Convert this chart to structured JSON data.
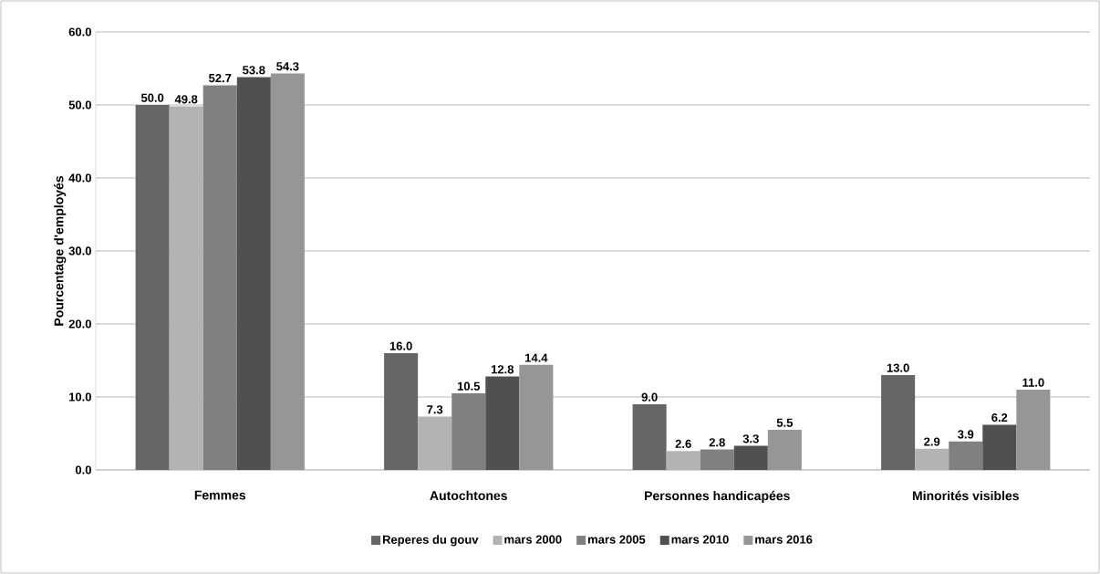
{
  "chart_data": {
    "type": "bar",
    "ylabel": "Pourcentage  d'employés",
    "categories": [
      "Femmes",
      "Autochtones",
      "Personnes handicapées",
      "Minorités visibles"
    ],
    "series": [
      {
        "name": "Reperes du gouv",
        "color": "#666666",
        "values": [
          50.0,
          16.0,
          9.0,
          13.0
        ],
        "value_labels": [
          "50.0",
          "16.0",
          "9.0",
          "13.0"
        ]
      },
      {
        "name": "mars 2000",
        "color": "#b3b3b3",
        "values": [
          49.8,
          7.3,
          2.6,
          2.9
        ],
        "value_labels": [
          "49.8",
          "7.3",
          "2.6",
          "2.9"
        ]
      },
      {
        "name": "mars 2005",
        "color": "#808080",
        "values": [
          52.7,
          10.5,
          2.8,
          3.9
        ],
        "value_labels": [
          "52.7",
          "10.5",
          "2.8",
          "3.9"
        ]
      },
      {
        "name": "mars 2010",
        "color": "#505050",
        "values": [
          53.8,
          12.8,
          3.3,
          6.2
        ],
        "value_labels": [
          "53.8",
          "12.8",
          "3.3",
          "6.2"
        ]
      },
      {
        "name": "mars 2016",
        "color": "#969696",
        "values": [
          54.3,
          14.4,
          5.5,
          11.0
        ],
        "value_labels": [
          "54.3",
          "14.4",
          "5.5",
          "11.0"
        ]
      }
    ],
    "ylim": [
      0,
      60
    ],
    "yticks": [
      {
        "value": 0,
        "label": "0.0"
      },
      {
        "value": 10,
        "label": "10.0"
      },
      {
        "value": 20,
        "label": "20.0"
      },
      {
        "value": 30,
        "label": "30.0"
      },
      {
        "value": 40,
        "label": "40.0"
      },
      {
        "value": 50,
        "label": "50.0"
      },
      {
        "value": 60,
        "label": "60.0"
      }
    ],
    "grid": "y",
    "legend": "bottom"
  }
}
